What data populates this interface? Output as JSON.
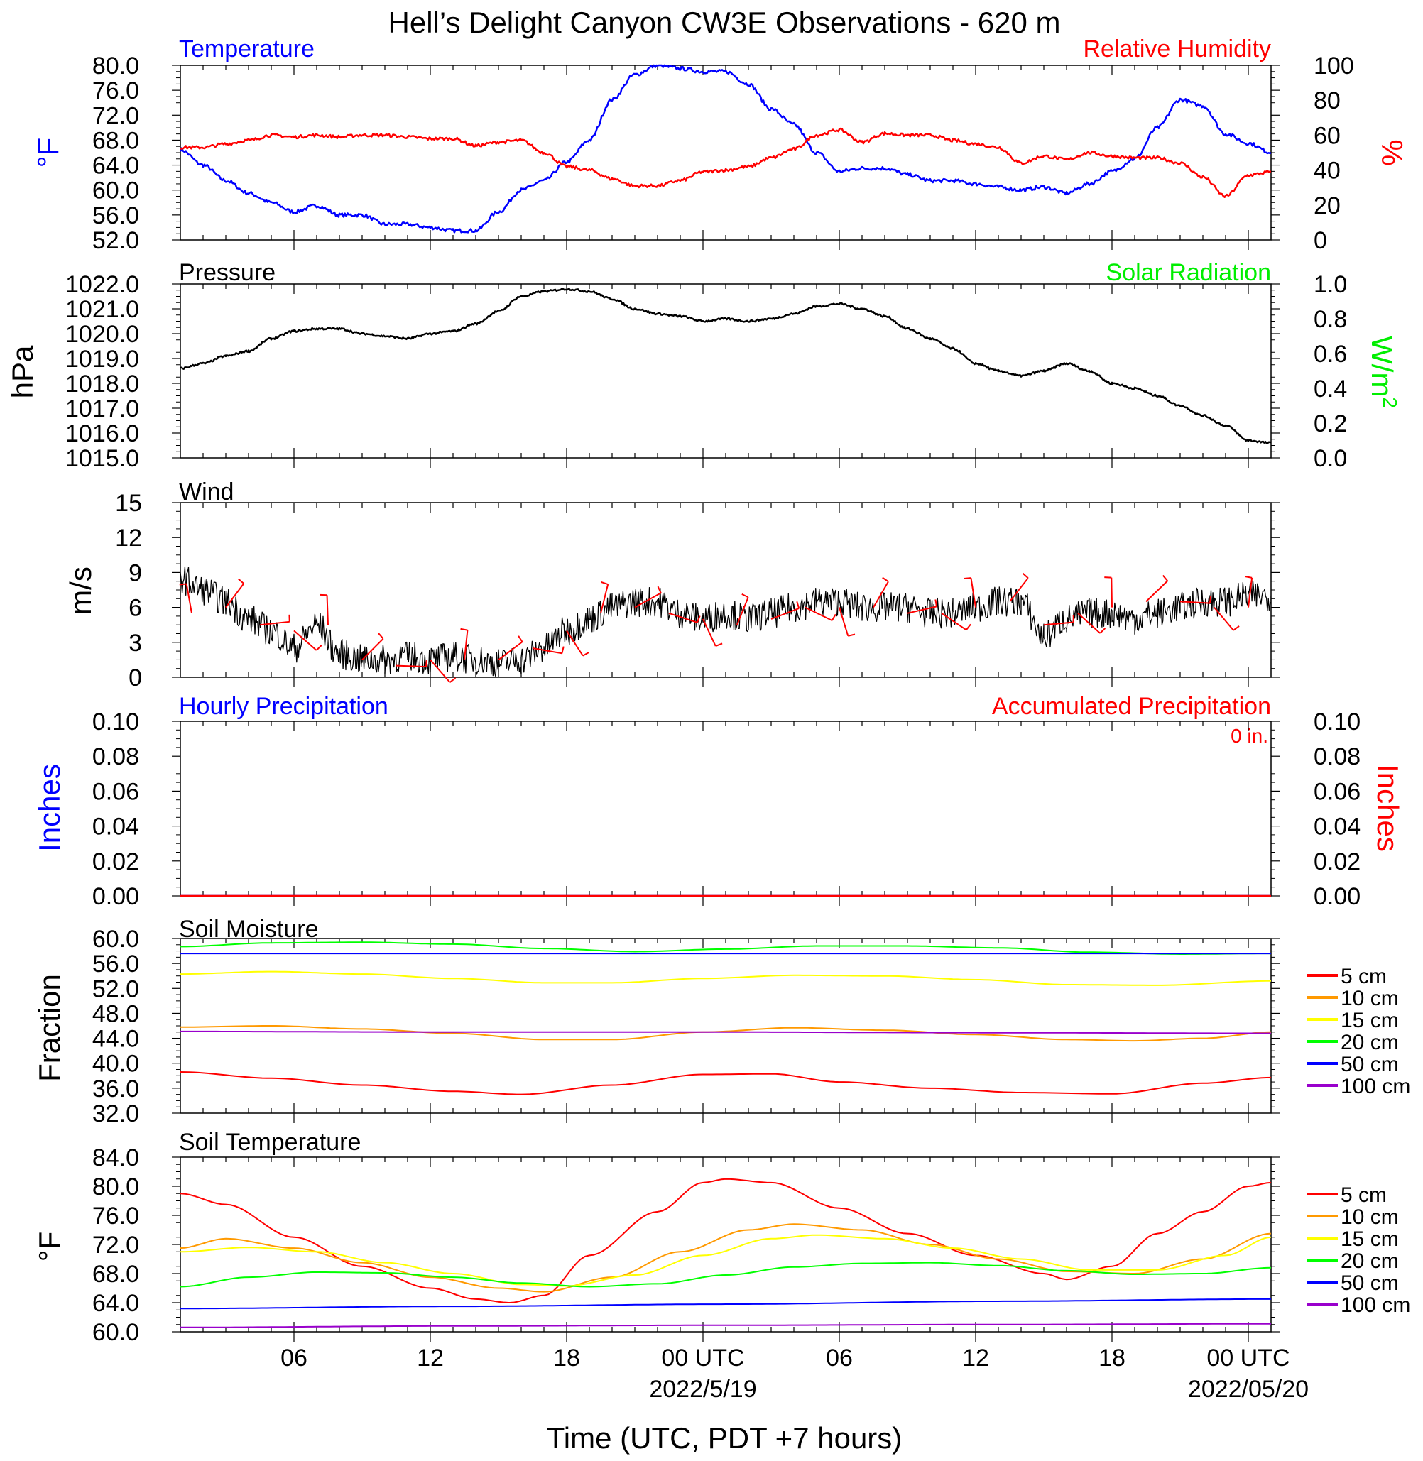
{
  "figure": {
    "title": "Hell’s Delight Canyon CW3E Observations - 620 m",
    "xaxis_title": "Time (UTC, PDT +7 hours)",
    "x_ticks": [
      "06",
      "12",
      "18",
      "00 UTC",
      "06",
      "12",
      "18",
      "00 UTC"
    ],
    "x_tick_hours": [
      6,
      12,
      18,
      24,
      30,
      36,
      42,
      48
    ],
    "x_range_hours": [
      1,
      49
    ],
    "date_labels": [
      {
        "text": "2022/5/19",
        "hour": 24
      },
      {
        "text": "2022/05/20",
        "hour": 48
      }
    ]
  },
  "chart_data": [
    {
      "type": "line",
      "id": "temp_rh",
      "title_left": "Temperature",
      "title_right": "Relative Humidity",
      "ylabel_left": "°F",
      "ylabel_right": "%",
      "ylim": [
        52,
        80
      ],
      "ylim_right": [
        0,
        100
      ],
      "yticks": [
        "80.0",
        "76.0",
        "72.0",
        "68.0",
        "64.0",
        "60.0",
        "56.0",
        "52.0"
      ],
      "yticks_right": [
        "100",
        "80",
        "60",
        "40",
        "20",
        "0"
      ],
      "series": [
        {
          "name": "Temperature",
          "color": "#0000ff",
          "axis": "left",
          "x": [
            1,
            2,
            3,
            4,
            5,
            6,
            7,
            8,
            9,
            10,
            11,
            12,
            13,
            14,
            15,
            16,
            17,
            18,
            19,
            20,
            21,
            22,
            23,
            24,
            25,
            26,
            27,
            28,
            29,
            30,
            31,
            32,
            33,
            34,
            35,
            36,
            37,
            38,
            39,
            40,
            41,
            42,
            43,
            44,
            45,
            46,
            47,
            48,
            49
          ],
          "values": [
            66.5,
            64.0,
            61.5,
            59.5,
            58.0,
            56.5,
            57.5,
            56.0,
            56.0,
            54.5,
            54.5,
            54.0,
            53.5,
            53.5,
            56.5,
            60.0,
            61.5,
            64.5,
            68.0,
            74.5,
            78.5,
            80.0,
            79.5,
            79.0,
            79.0,
            77.0,
            73.0,
            70.5,
            66.0,
            63.0,
            63.5,
            63.5,
            62.5,
            61.5,
            61.5,
            61.0,
            60.5,
            60.0,
            60.5,
            59.5,
            61.0,
            63.0,
            65.0,
            70.0,
            74.5,
            73.5,
            69.0,
            67.5,
            66.0
          ]
        },
        {
          "name": "Relative Humidity",
          "color": "#ff0000",
          "axis": "right",
          "x": [
            1,
            2,
            3,
            4,
            5,
            6,
            7,
            8,
            9,
            10,
            11,
            12,
            13,
            14,
            15,
            16,
            17,
            18,
            19,
            20,
            21,
            22,
            23,
            24,
            25,
            26,
            27,
            28,
            29,
            30,
            31,
            32,
            33,
            34,
            35,
            36,
            37,
            38,
            39,
            40,
            41,
            42,
            43,
            44,
            45,
            46,
            47,
            48,
            49
          ],
          "values": [
            53,
            53,
            55,
            57,
            60,
            59,
            60,
            59,
            60,
            60,
            59,
            58,
            58,
            54,
            56,
            57,
            50,
            42,
            40,
            35,
            31,
            31,
            34,
            39,
            40,
            42,
            47,
            52,
            60,
            63,
            56,
            61,
            60,
            60,
            57,
            55,
            53,
            44,
            48,
            46,
            50,
            48,
            47,
            47,
            44,
            36,
            25,
            37,
            39
          ]
        }
      ]
    },
    {
      "type": "line",
      "id": "pressure",
      "title_left": "Pressure",
      "title_right": "Solar Radiation",
      "ylabel_left": "hPa",
      "ylabel_right": "W/m",
      "ylabel_right_sup": "2",
      "ylim": [
        1015,
        1022
      ],
      "ylim_right": [
        0,
        1
      ],
      "yticks": [
        "1022.0",
        "1021.0",
        "1020.0",
        "1019.0",
        "1018.0",
        "1017.0",
        "1016.0",
        "1015.0"
      ],
      "yticks_right": [
        "1.0",
        "0.8",
        "0.6",
        "0.4",
        "0.2",
        "0.0"
      ],
      "series": [
        {
          "name": "Pressure",
          "color": "#000000",
          "axis": "left",
          "x": [
            1,
            2,
            3,
            4,
            5,
            6,
            7,
            8,
            9,
            10,
            11,
            12,
            13,
            14,
            15,
            16,
            17,
            18,
            19,
            20,
            21,
            22,
            23,
            24,
            25,
            26,
            27,
            28,
            29,
            30,
            31,
            32,
            33,
            34,
            35,
            36,
            37,
            38,
            39,
            40,
            41,
            42,
            43,
            44,
            45,
            46,
            47,
            48,
            49
          ],
          "values": [
            1018.6,
            1018.8,
            1019.1,
            1019.3,
            1019.8,
            1020.1,
            1020.2,
            1020.2,
            1020.0,
            1019.9,
            1019.8,
            1020.0,
            1020.1,
            1020.4,
            1020.9,
            1021.5,
            1021.7,
            1021.8,
            1021.7,
            1021.4,
            1021.0,
            1020.8,
            1020.7,
            1020.5,
            1020.6,
            1020.5,
            1020.6,
            1020.8,
            1021.1,
            1021.2,
            1021.0,
            1020.7,
            1020.2,
            1019.8,
            1019.4,
            1018.8,
            1018.5,
            1018.3,
            1018.5,
            1018.8,
            1018.5,
            1018.0,
            1017.8,
            1017.5,
            1017.1,
            1016.7,
            1016.3,
            1015.7,
            1015.6
          ]
        }
      ]
    },
    {
      "type": "line",
      "id": "wind",
      "title_left": "Wind",
      "ylabel_left": "m/s",
      "ylim": [
        0,
        15
      ],
      "yticks": [
        "15",
        "12",
        "9",
        "6",
        "3",
        "0"
      ],
      "series": [
        {
          "name": "Wind speed",
          "color": "#000000",
          "axis": "left",
          "x": [
            1,
            2,
            3,
            4,
            5,
            6,
            7,
            8,
            9,
            10,
            11,
            12,
            13,
            14,
            15,
            16,
            17,
            18,
            19,
            20,
            21,
            22,
            23,
            24,
            25,
            26,
            27,
            28,
            29,
            30,
            31,
            32,
            33,
            34,
            35,
            36,
            37,
            38,
            39,
            40,
            41,
            42,
            43,
            44,
            45,
            46,
            47,
            48,
            49
          ],
          "values": [
            8.5,
            7.5,
            6.5,
            5.0,
            4.0,
            2.5,
            4.5,
            2.0,
            1.5,
            1.5,
            1.8,
            1.5,
            1.8,
            1.5,
            1.2,
            1.5,
            2.5,
            4.0,
            5.0,
            6.0,
            6.5,
            6.5,
            5.5,
            5.0,
            5.5,
            5.0,
            5.5,
            6.0,
            6.5,
            6.5,
            6.0,
            6.0,
            6.0,
            5.5,
            5.5,
            6.0,
            6.5,
            6.5,
            3.5,
            5.0,
            5.5,
            5.5,
            5.0,
            5.5,
            6.0,
            6.5,
            6.5,
            7.0,
            7.0
          ]
        },
        {
          "name": "Wind barbs",
          "color": "#ff0000",
          "axis": "left",
          "x": [
            1.5,
            3,
            4.5,
            6,
            7.5,
            9,
            10.5,
            12,
            13.5,
            15,
            16.5,
            18,
            19.5,
            21,
            22.5,
            24,
            25.5,
            27,
            28.5,
            30,
            31.5,
            33,
            34.5,
            36,
            37.5,
            39,
            40.5,
            42,
            43.5,
            45,
            46.5,
            48
          ],
          "values": [
            5.5,
            6.0,
            4.5,
            4.0,
            4.5,
            1.5,
            1.0,
            1.5,
            1.5,
            1.5,
            2.5,
            4.0,
            5.5,
            6.0,
            5.5,
            5.0,
            4.5,
            5.0,
            6.0,
            6.0,
            6.0,
            5.5,
            5.5,
            6.0,
            6.5,
            4.5,
            5.5,
            6.0,
            6.5,
            6.5,
            6.0,
            6.0
          ]
        }
      ]
    },
    {
      "type": "line",
      "id": "precip",
      "title_left": "Hourly Precipitation",
      "title_right": "Accumulated Precipitation",
      "annotation": "0 in.",
      "ylabel_left": "Inches",
      "ylabel_right": "Inches",
      "ylim": [
        0,
        0.1
      ],
      "ylim_right": [
        0,
        0.1
      ],
      "yticks": [
        "0.10",
        "0.08",
        "0.06",
        "0.04",
        "0.02",
        "0.00"
      ],
      "yticks_right": [
        "0.10",
        "0.08",
        "0.06",
        "0.04",
        "0.02",
        "0.00"
      ],
      "series": [
        {
          "name": "Hourly Precipitation",
          "color": "#0000ff",
          "axis": "left",
          "x": [
            1,
            49
          ],
          "values": [
            0,
            0
          ]
        },
        {
          "name": "Accumulated Precipitation",
          "color": "#ff0000",
          "axis": "right",
          "x": [
            1,
            49
          ],
          "values": [
            0,
            0
          ]
        }
      ]
    },
    {
      "type": "line",
      "id": "soil_moisture",
      "title_left": "Soil Moisture",
      "ylabel_left": "Fraction",
      "ylim": [
        32,
        60
      ],
      "yticks": [
        "60.0",
        "56.0",
        "52.0",
        "48.0",
        "44.0",
        "40.0",
        "36.0",
        "32.0"
      ],
      "legend": [
        "5 cm",
        "10 cm",
        "15 cm",
        "20 cm",
        "50 cm",
        "100 cm"
      ],
      "series": [
        {
          "name": "5 cm",
          "color": "#ff0000",
          "x": [
            1,
            5,
            9,
            13,
            16,
            20,
            24,
            27,
            30,
            34,
            38,
            42,
            46,
            49
          ],
          "values": [
            38.6,
            37.6,
            36.5,
            35.5,
            35.0,
            36.5,
            38.2,
            38.3,
            37.0,
            36.0,
            35.3,
            35.1,
            36.8,
            37.7
          ]
        },
        {
          "name": "10 cm",
          "color": "#ff9900",
          "x": [
            1,
            5,
            9,
            13,
            17,
            20,
            24,
            28,
            32,
            36,
            40,
            43,
            46,
            49
          ],
          "values": [
            45.8,
            46.0,
            45.5,
            44.8,
            43.8,
            43.8,
            45.0,
            45.7,
            45.3,
            44.6,
            43.8,
            43.6,
            44.0,
            45.0
          ]
        },
        {
          "name": "15 cm",
          "color": "#ffff00",
          "x": [
            1,
            5,
            9,
            13,
            17,
            20,
            24,
            28,
            32,
            36,
            40,
            44,
            49
          ],
          "values": [
            54.3,
            54.7,
            54.3,
            53.6,
            52.9,
            52.9,
            53.6,
            54.1,
            54.0,
            53.4,
            52.6,
            52.5,
            53.2
          ]
        },
        {
          "name": "20 cm",
          "color": "#00ff00",
          "x": [
            1,
            5,
            9,
            13,
            17,
            21,
            25,
            29,
            33,
            37,
            41,
            45,
            49
          ],
          "values": [
            58.7,
            59.3,
            59.4,
            59.1,
            58.4,
            57.9,
            58.3,
            58.8,
            58.8,
            58.5,
            57.8,
            57.5,
            57.6
          ]
        },
        {
          "name": "50 cm",
          "color": "#0000ff",
          "x": [
            1,
            13,
            25,
            37,
            49
          ],
          "values": [
            57.6,
            57.6,
            57.6,
            57.6,
            57.6
          ]
        },
        {
          "name": "100 cm",
          "color": "#9900cc",
          "x": [
            1,
            13,
            25,
            37,
            49
          ],
          "values": [
            45.1,
            45.0,
            45.0,
            44.9,
            44.8
          ]
        }
      ]
    },
    {
      "type": "line",
      "id": "soil_temperature",
      "title_left": "Soil Temperature",
      "ylabel_left": "°F",
      "ylim": [
        60,
        84
      ],
      "yticks": [
        "84.0",
        "80.0",
        "76.0",
        "72.0",
        "68.0",
        "64.0",
        "60.0"
      ],
      "legend": [
        "5 cm",
        "10 cm",
        "15 cm",
        "20 cm",
        "50 cm",
        "100 cm"
      ],
      "series": [
        {
          "name": "5 cm",
          "color": "#ff0000",
          "x": [
            1,
            3,
            6,
            9,
            12,
            14,
            15.5,
            17,
            19,
            22,
            24,
            25,
            27,
            30,
            33,
            36,
            39,
            40,
            42,
            44,
            46,
            48,
            49
          ],
          "values": [
            79.0,
            77.5,
            73.0,
            69.0,
            66.0,
            64.5,
            64.0,
            65.0,
            70.5,
            76.5,
            80.5,
            81.0,
            80.5,
            77.0,
            73.5,
            70.5,
            68.0,
            67.2,
            69.0,
            73.5,
            76.5,
            80.0,
            80.5
          ]
        },
        {
          "name": "10 cm",
          "color": "#ff9900",
          "x": [
            1,
            3,
            6,
            9,
            12,
            15,
            17,
            20,
            23,
            26,
            28,
            31,
            34,
            37,
            40,
            43,
            46,
            49
          ],
          "values": [
            71.5,
            72.8,
            71.5,
            69.5,
            67.5,
            66.0,
            65.5,
            67.5,
            71.0,
            74.0,
            74.8,
            74.0,
            72.0,
            70.0,
            68.3,
            68.0,
            70.0,
            73.5
          ]
        },
        {
          "name": "15 cm",
          "color": "#ffff00",
          "x": [
            1,
            4,
            7,
            10,
            13,
            16,
            18,
            21,
            24,
            27,
            29,
            32,
            35,
            38,
            41,
            44,
            47,
            49
          ],
          "values": [
            71.0,
            71.6,
            71.0,
            69.5,
            68.0,
            66.5,
            66.3,
            67.8,
            70.5,
            72.8,
            73.3,
            72.8,
            71.5,
            70.0,
            68.5,
            68.5,
            70.5,
            73.0
          ]
        },
        {
          "name": "20 cm",
          "color": "#00ff00",
          "x": [
            1,
            4,
            7,
            10,
            13,
            16,
            19,
            22,
            25,
            28,
            31,
            34,
            37,
            40,
            43,
            46,
            49
          ],
          "values": [
            66.2,
            67.5,
            68.2,
            68.1,
            67.5,
            66.7,
            66.2,
            66.6,
            67.8,
            68.9,
            69.4,
            69.5,
            69.1,
            68.4,
            67.9,
            68.0,
            68.8
          ]
        },
        {
          "name": "50 cm",
          "color": "#0000ff",
          "x": [
            1,
            13,
            25,
            37,
            49
          ],
          "values": [
            63.2,
            63.5,
            63.8,
            64.2,
            64.5
          ]
        },
        {
          "name": "100 cm",
          "color": "#9900cc",
          "x": [
            1,
            13,
            25,
            37,
            49
          ],
          "values": [
            60.6,
            60.8,
            60.9,
            61.0,
            61.1
          ]
        }
      ]
    }
  ]
}
